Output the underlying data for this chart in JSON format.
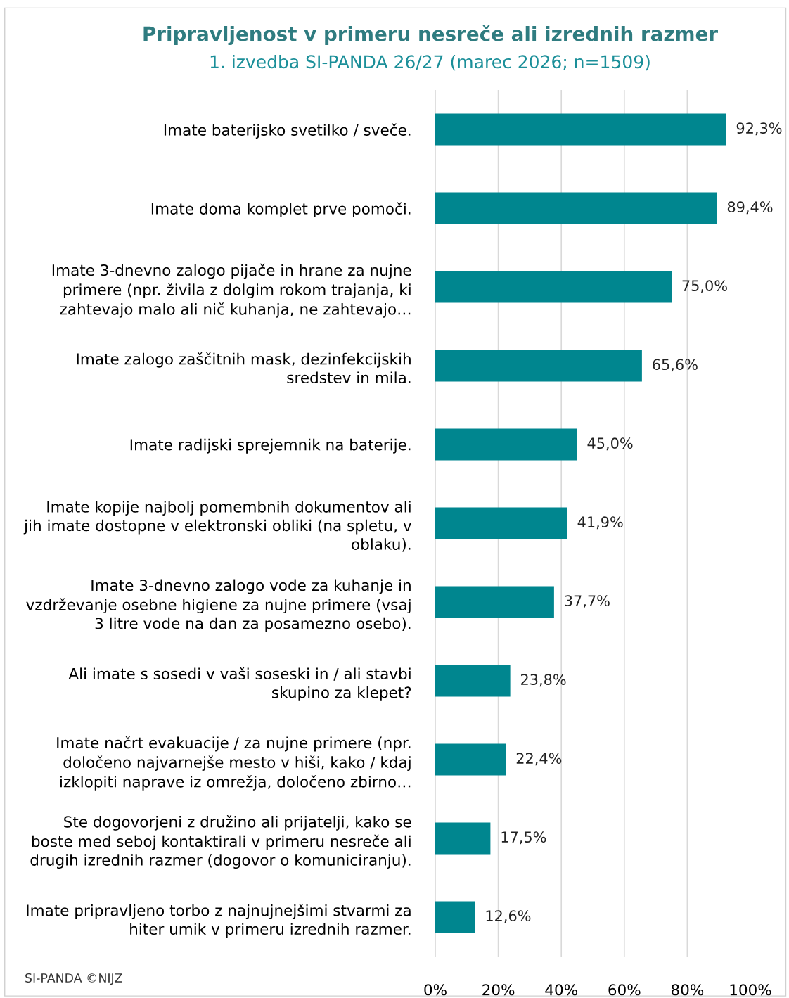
{
  "chart_data": {
    "type": "bar",
    "orientation": "horizontal",
    "title": "Pripravljenost v primeru nesreče ali izrednih razmer",
    "subtitle": "1. izvedba SI-PANDA 26/27 (marec 2026; n=1509)",
    "categories": [
      "Imate baterijsko svetilko / sveče.",
      "Imate doma komplet prve pomoči.",
      "Imate 3-dnevno zalogo pijače in hrane za nujne\nprimere (npr. živila z dolgim rokom trajanja, ki\nzahtevajo malo ali nič kuhanja, ne zahtevajo…",
      "Imate zalogo zaščitnih mask, dezinfekcijskih\nsredstev in mila.",
      "Imate radijski sprejemnik na baterije.",
      "Imate kopije najbolj pomembnih dokumentov ali\njih imate dostopne v elektronski obliki (na spletu, v\noblaku).",
      "Imate 3-dnevno zalogo vode za kuhanje in\nvzdrževanje osebne higiene za nujne primere (vsaj\n3 litre vode na dan za posamezno osebo).",
      "Ali imate s sosedi v vaši soseski in / ali stavbi\nskupino za klepet?",
      "Imate načrt evakuacije / za nujne primere (npr.\ndoločeno najvarnejše mesto v hiši, kako / kdaj\nizklopiti naprave iz omrežja, določeno zbirno…",
      "Ste dogovorjeni z družino ali prijatelji, kako se\nboste med seboj kontaktirali v primeru nesreče ali\ndrugih izrednih razmer (dogovor o komuniciranju).",
      "Imate pripravljeno torbo z najnujnejšimi stvarmi za\nhiter umik v primeru izrednih razmer."
    ],
    "values": [
      92.3,
      89.4,
      75.0,
      65.6,
      45.0,
      41.9,
      37.7,
      23.8,
      22.4,
      17.5,
      12.6
    ],
    "value_labels": [
      "92,3%",
      "89,4%",
      "75,0%",
      "65,6%",
      "45,0%",
      "41,9%",
      "37,7%",
      "23,8%",
      "22,4%",
      "17,5%",
      "12,6%"
    ],
    "color": "#00868f",
    "xlim": [
      0,
      100
    ],
    "xticks": [
      {
        "value": 0,
        "label": "0%"
      },
      {
        "value": 20,
        "label": "20%"
      },
      {
        "value": 40,
        "label": "40%"
      },
      {
        "value": 60,
        "label": "60%"
      },
      {
        "value": 80,
        "label": "80%"
      },
      {
        "value": 100,
        "label": "100%"
      }
    ],
    "grid": "x",
    "legend": false,
    "annotations": [
      "SI-PANDA ©NIJZ"
    ]
  }
}
